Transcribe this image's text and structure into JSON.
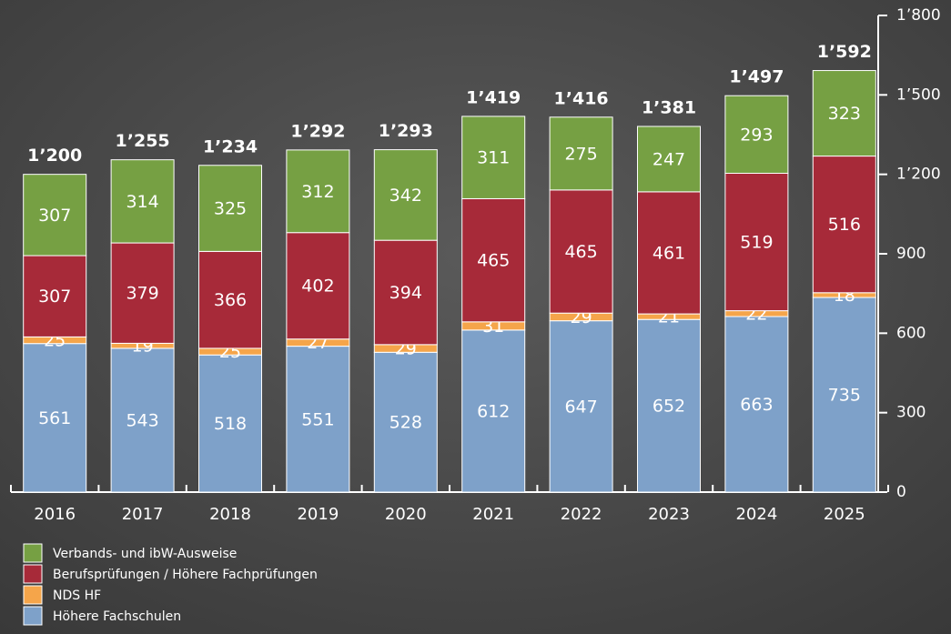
{
  "chart_data": {
    "type": "stacked-bar",
    "categories": [
      "2016",
      "2017",
      "2018",
      "2019",
      "2020",
      "2021",
      "2022",
      "2023",
      "2024",
      "2025"
    ],
    "series": [
      {
        "name": "Höhere Fachschulen",
        "color": "#7ea1c9",
        "values": [
          561,
          543,
          518,
          551,
          528,
          612,
          647,
          652,
          663,
          735
        ]
      },
      {
        "name": "NDS HF",
        "color": "#f5a54a",
        "values": [
          25,
          19,
          25,
          27,
          29,
          31,
          29,
          21,
          22,
          18
        ]
      },
      {
        "name": "Berufsprüfungen / Höhere Fachprüfungen",
        "color": "#a72a39",
        "values": [
          307,
          379,
          366,
          402,
          394,
          465,
          465,
          461,
          519,
          516
        ]
      },
      {
        "name": "Verbands- und ibW-Ausweise",
        "color": "#76a043",
        "values": [
          307,
          314,
          325,
          312,
          342,
          311,
          275,
          247,
          293,
          323
        ]
      }
    ],
    "totals": [
      1200,
      1255,
      1234,
      1292,
      1293,
      1419,
      1416,
      1381,
      1497,
      1592
    ],
    "total_labels": [
      "1’200",
      "1’255",
      "1’234",
      "1’292",
      "1’293",
      "1’419",
      "1’416",
      "1’381",
      "1’497",
      "1’592"
    ],
    "ylim": [
      0,
      1800
    ],
    "yticks": [
      0,
      300,
      600,
      900,
      {
        "value": 1200,
        "label": "1’200"
      },
      {
        "value": 1500,
        "label": "1’500"
      },
      {
        "value": 1800,
        "label": "1’800"
      }
    ],
    "y_axis_side": "right",
    "legend": "bottom-left"
  }
}
